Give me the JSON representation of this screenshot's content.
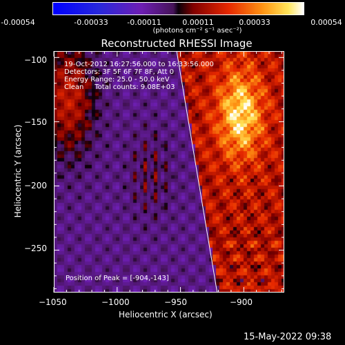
{
  "colorbar": {
    "tick_labels": [
      "-0.00054",
      "-0.00033",
      "-0.00011",
      "0.00011",
      "0.00033",
      "0.00054"
    ],
    "units_label": "(photons cm⁻² s⁻¹ asec⁻²)",
    "range": [
      -0.00054,
      0.00054
    ]
  },
  "title": "Reconstructed RHESSI Image",
  "annotations": {
    "time_range": "19-Oct-2012 16:27:56.000 to 16:33:56.000",
    "detectors": "Detectors: 3F 5F 6F 7F 8F, Att 0",
    "energy_range": "Energy Range: 25.0 - 50.0 keV",
    "clean_counts": "Clean     Total counts: 9.08E+03",
    "peak_position": "Position of Peak = [-904,-143]"
  },
  "footer": {
    "timestamp": "15-May-2022 09:38"
  },
  "chart_data": {
    "type": "heatmap",
    "title": "Reconstructed RHESSI Image",
    "xlabel": "Heliocentric X (arcsec)",
    "ylabel": "Heliocentric Y (arcsec)",
    "xlim": [
      -1050,
      -868
    ],
    "ylim": [
      -283,
      -95
    ],
    "x_tick_values": [
      -1050,
      -1000,
      -950,
      -900
    ],
    "x_tick_labels": [
      "−1050",
      "−1000",
      "−950",
      "−900"
    ],
    "y_tick_values": [
      -100,
      -150,
      -200,
      -250
    ],
    "y_tick_labels": [
      "−100",
      "−150",
      "−200",
      "−250"
    ],
    "peak": [
      -904,
      -143
    ],
    "colormap": "rhessi-blue-purple-red-yellow",
    "limb_line": [
      [
        -953,
        -95
      ],
      [
        -921,
        -283
      ]
    ]
  }
}
